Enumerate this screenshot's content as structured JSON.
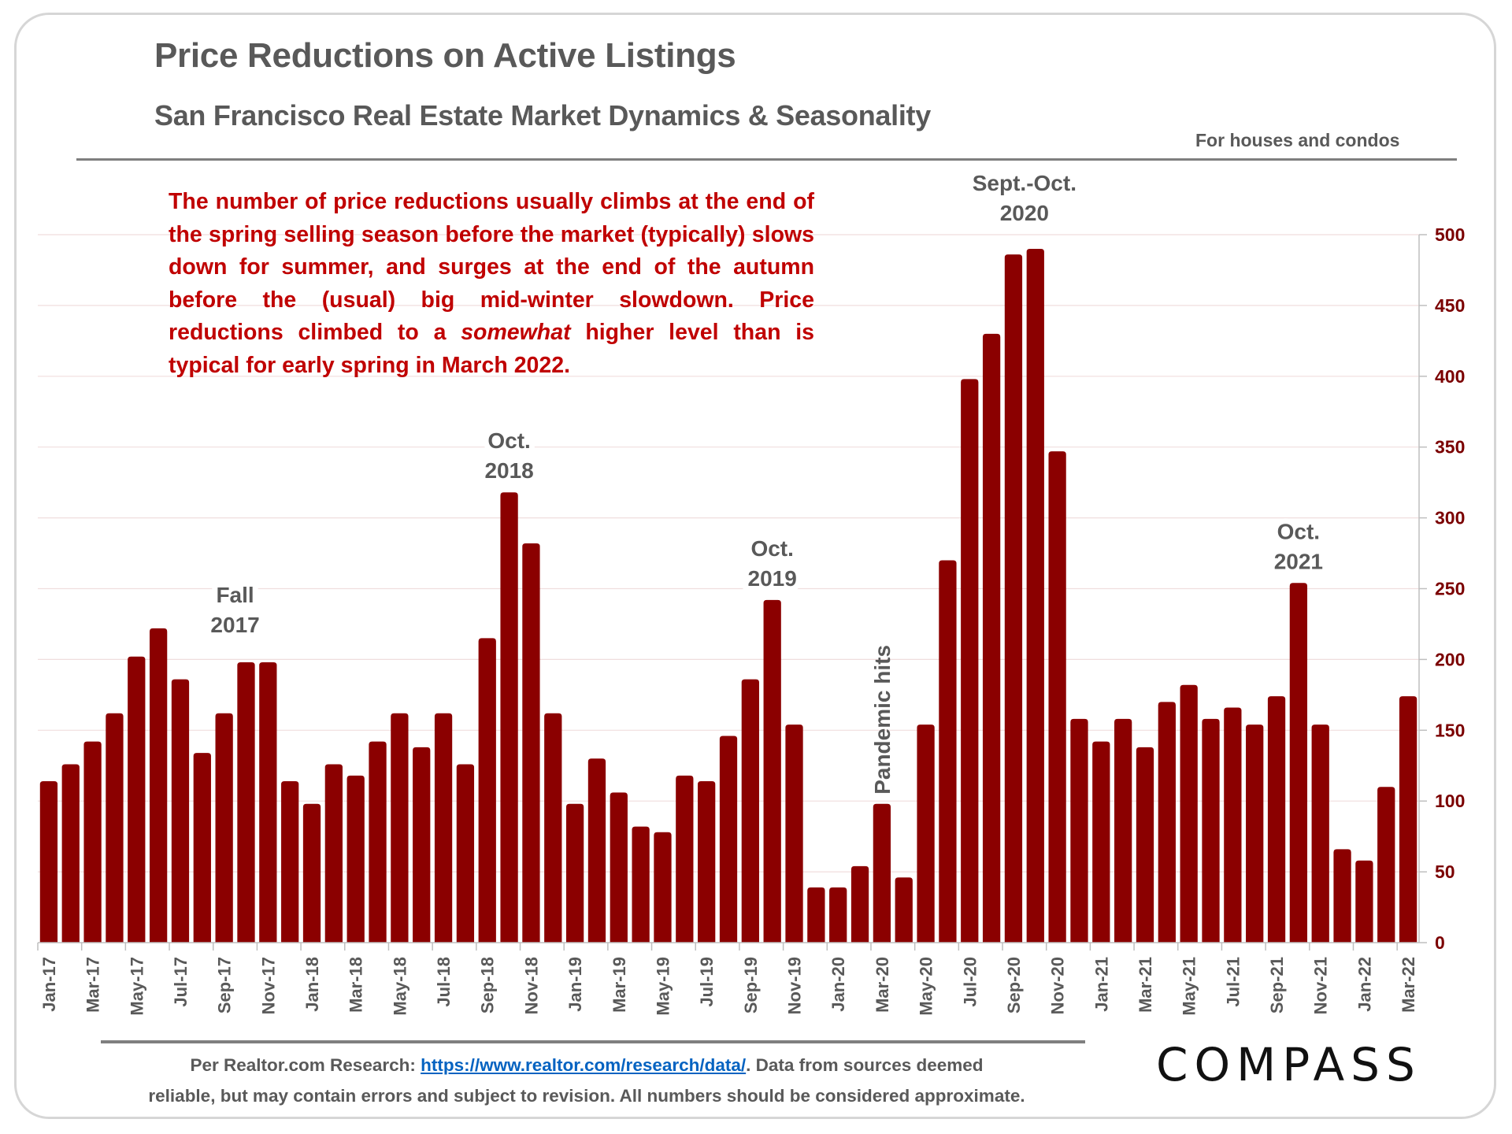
{
  "header": {
    "title": "Price Reductions on Active Listings",
    "subtitle": "San Francisco Real Estate Market Dynamics & Seasonality",
    "scope": "For houses and condos"
  },
  "note": {
    "part1": "The number of price reductions usually climbs at the end of the spring selling season before the market (typically) slows down for summer, and surges at the end of the autumn before the (usual) big mid-winter slowdown. Price reductions climbed to a ",
    "emphasis": "somewhat",
    "part2": " higher level than is typical for early spring in March 2022."
  },
  "footer": {
    "prefix": "Per Realtor.com Research:  ",
    "link_text": "https://www.realtor.com/research/data/",
    "suffix": ". Data from sources deemed",
    "line2": "reliable, but may contain errors and subject to revision. All numbers should be considered approximate."
  },
  "logo": {
    "text": "COMPASS"
  },
  "colors": {
    "bar": "#8b0000",
    "axis_label": "#7b0000",
    "text_gray": "#595959",
    "note_red": "#c00000",
    "grid": "#f0dede"
  },
  "chart_data": {
    "type": "bar",
    "title": "Price Reductions on Active Listings",
    "xlabel": "",
    "ylabel": "",
    "ylim": [
      0,
      500
    ],
    "yticks": [
      0,
      50,
      100,
      150,
      200,
      250,
      300,
      350,
      400,
      450,
      500
    ],
    "y_axis_side": "right",
    "grid": true,
    "categories": [
      "Jan-17",
      "Feb-17",
      "Mar-17",
      "Apr-17",
      "May-17",
      "Jun-17",
      "Jul-17",
      "Aug-17",
      "Sep-17",
      "Oct-17",
      "Nov-17",
      "Dec-17",
      "Jan-18",
      "Feb-18",
      "Mar-18",
      "Apr-18",
      "May-18",
      "Jun-18",
      "Jul-18",
      "Aug-18",
      "Sep-18",
      "Oct-18",
      "Nov-18",
      "Dec-18",
      "Jan-19",
      "Feb-19",
      "Mar-19",
      "Apr-19",
      "May-19",
      "Jun-19",
      "Jul-19",
      "Aug-19",
      "Sep-19",
      "Oct-19",
      "Nov-19",
      "Dec-19",
      "Jan-20",
      "Feb-20",
      "Mar-20",
      "Apr-20",
      "May-20",
      "Jun-20",
      "Jul-20",
      "Aug-20",
      "Sep-20",
      "Oct-20",
      "Nov-20",
      "Dec-20",
      "Jan-21",
      "Feb-21",
      "Mar-21",
      "Apr-21",
      "May-21",
      "Jun-21",
      "Jul-21",
      "Aug-21",
      "Sep-21",
      "Oct-21",
      "Nov-21",
      "Dec-21",
      "Jan-22",
      "Feb-22",
      "Mar-22"
    ],
    "x_tick_labels_shown_every": 2,
    "values": [
      114,
      126,
      142,
      162,
      202,
      222,
      186,
      134,
      162,
      198,
      198,
      114,
      98,
      126,
      118,
      142,
      162,
      138,
      162,
      126,
      215,
      318,
      282,
      162,
      98,
      130,
      106,
      82,
      78,
      118,
      114,
      146,
      186,
      242,
      154,
      39,
      39,
      54,
      98,
      46,
      154,
      270,
      398,
      430,
      486,
      490,
      347,
      158,
      142,
      158,
      138,
      170,
      182,
      158,
      166,
      154,
      174,
      254,
      154,
      66,
      58,
      110,
      174
    ],
    "annotations": [
      {
        "lines": [
          "Fall",
          "2017"
        ],
        "at": "Oct-17"
      },
      {
        "lines": [
          "Oct.",
          "2018"
        ],
        "at": "Oct-18"
      },
      {
        "lines": [
          "Oct.",
          "2019"
        ],
        "at": "Oct-19"
      },
      {
        "lines": [
          "Pandemic hits"
        ],
        "at": "Mar-20",
        "rotated": true
      },
      {
        "lines": [
          "Sept.-Oct.",
          "2020"
        ],
        "at": "Sep-20"
      },
      {
        "lines": [
          "Oct.",
          "2021"
        ],
        "at": "Oct-21"
      }
    ]
  }
}
